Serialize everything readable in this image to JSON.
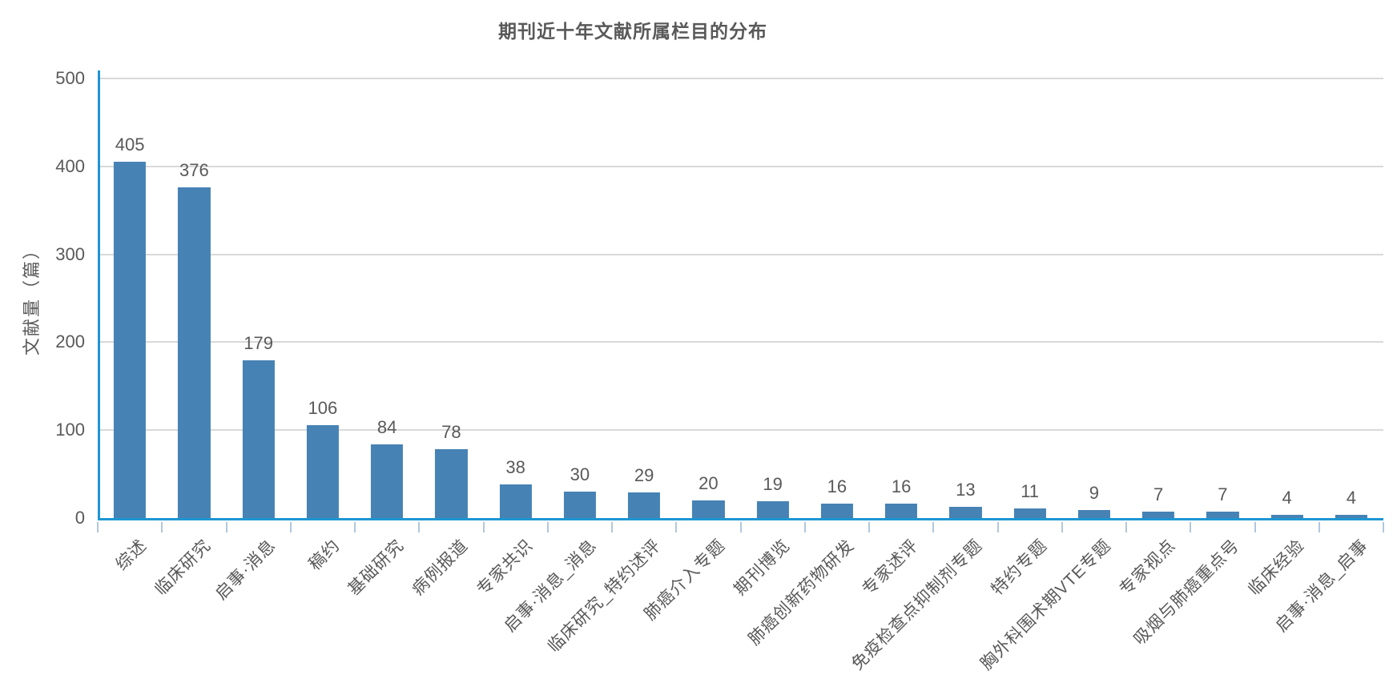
{
  "colors": {
    "bar": "#4682B4",
    "axis": "#1E96D2",
    "grid": "#D9D9D9",
    "tick_mark": "#AFC8DF",
    "text": "#595959"
  },
  "chart_data": {
    "type": "bar",
    "title": "期刊近十年文献所属栏目的分布",
    "xlabel": "",
    "ylabel": "文献量（篇）",
    "ylim": [
      0,
      500
    ],
    "yticks": [
      0,
      100,
      200,
      300,
      400,
      500
    ],
    "grid": true,
    "legend": false,
    "bar_color": "#4682B4",
    "categories": [
      "综述",
      "临床研究",
      "启事·消息",
      "稿约",
      "基础研究",
      "病例报道",
      "专家共识",
      "启事·消息_消息",
      "临床研究_特约述评",
      "肺癌介入专题",
      "期刊博览",
      "肺癌创新药物研发",
      "专家述评",
      "免疫检查点抑制剂专题",
      "特约专题",
      "胸外科围术期VTE专题",
      "专家视点",
      "吸烟与肺癌重点号",
      "临床经验",
      "启事·消息_启事"
    ],
    "values": [
      405,
      376,
      179,
      106,
      84,
      78,
      38,
      30,
      29,
      20,
      19,
      16,
      16,
      13,
      11,
      9,
      7,
      7,
      4,
      4
    ]
  }
}
